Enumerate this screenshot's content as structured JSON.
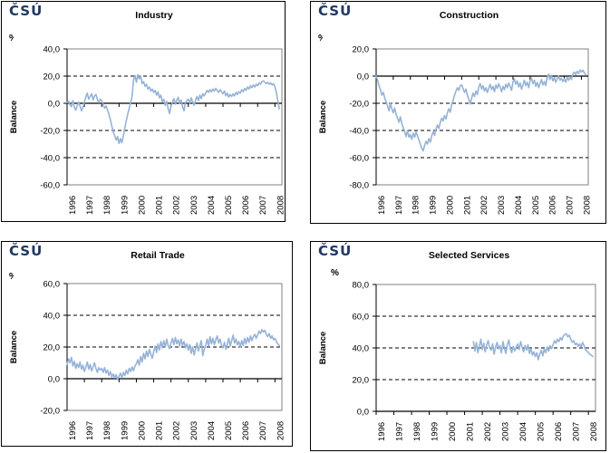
{
  "page": {
    "background": "#ffffff"
  },
  "logo": {
    "text": "ČSÚ",
    "color": "#1F3864"
  },
  "chart_data": [
    {
      "type": "line",
      "title": "Industry",
      "unit_label": "%",
      "unit_clipped": true,
      "ylabel": "Balance",
      "ylim": [
        -60,
        40
      ],
      "ytick_values": [
        40,
        20,
        0,
        -20,
        -40,
        -60
      ],
      "ytick_labels": [
        "40,0",
        "20,0",
        "0,0",
        "-20,0",
        "-40,0",
        "-60,0"
      ],
      "xlim": [
        1996,
        2008.4
      ],
      "xtick_values": [
        1996,
        1997,
        1998,
        1999,
        2000,
        2001,
        2002,
        2003,
        2004,
        2005,
        2006,
        2007,
        2008
      ],
      "xtick_labels": [
        "1996",
        "1997",
        "1998",
        "1999",
        "2000",
        "2001",
        "2002",
        "2003",
        "2004",
        "2005",
        "2006",
        "2007",
        "2008"
      ],
      "grid": "horizontal-dashed",
      "legend": "none",
      "line_color": "#95B3D7",
      "x_start": 1996.0,
      "x_step_years": 0.08333,
      "values": [
        0.5,
        1.5,
        -1.0,
        -2.5,
        2.0,
        -3.0,
        -5.0,
        -2.0,
        1.0,
        -2.0,
        -5.5,
        -3.0,
        1.0,
        4.5,
        7.5,
        3.0,
        5.0,
        7.0,
        2.5,
        5.5,
        6.5,
        3.0,
        0.5,
        3.0,
        2.0,
        -1.0,
        -3.5,
        -2.0,
        -5.0,
        -8.0,
        -12.0,
        -17.0,
        -21.0,
        -24.0,
        -27.0,
        -24.5,
        -29.5,
        -26.0,
        -29.0,
        -24.0,
        -18.0,
        -13.0,
        -8.0,
        -4.0,
        0.5,
        5.0,
        17.0,
        20.5,
        15.5,
        21.0,
        18.0,
        20.0,
        14.5,
        16.0,
        12.5,
        14.0,
        10.5,
        12.0,
        9.0,
        10.5,
        8.0,
        9.5,
        6.0,
        8.5,
        4.0,
        6.0,
        1.0,
        3.0,
        -1.5,
        1.5,
        -4.0,
        -7.5,
        -2.0,
        1.0,
        3.5,
        -0.5,
        2.0,
        4.5,
        0.0,
        2.5,
        -2.5,
        -5.5,
        0.5,
        2.0,
        3.0,
        0.0,
        4.0,
        1.0,
        -1.5,
        2.5,
        5.0,
        2.0,
        6.0,
        3.5,
        7.0,
        5.5,
        7.5,
        9.5,
        8.0,
        10.0,
        8.5,
        10.5,
        9.0,
        11.0,
        9.5,
        8.0,
        10.0,
        8.5,
        7.0,
        9.0,
        5.5,
        7.5,
        4.5,
        6.5,
        5.0,
        7.0,
        5.5,
        8.0,
        6.5,
        8.5,
        7.5,
        10.0,
        8.5,
        11.0,
        9.5,
        12.0,
        10.5,
        13.0,
        11.5,
        13.5,
        12.0,
        14.0,
        13.0,
        15.0,
        14.0,
        16.0,
        16.5,
        15.5,
        14.5,
        15.5,
        14.0,
        15.0,
        13.5,
        14.5,
        12.0,
        8.0,
        2.0,
        -4.0
      ]
    },
    {
      "type": "line",
      "title": "Construction",
      "unit_label": "%",
      "unit_clipped": true,
      "ylabel": "Balance",
      "ylim": [
        -80,
        20
      ],
      "ytick_values": [
        20,
        0,
        -20,
        -40,
        -60,
        -80
      ],
      "ytick_labels": [
        "20,0",
        "0,0",
        "-20,0",
        "-40,0",
        "-60,0",
        "-80,0"
      ],
      "xlim": [
        1996,
        2008.4
      ],
      "xtick_values": [
        1996,
        1997,
        1998,
        1999,
        2000,
        2001,
        2002,
        2003,
        2004,
        2005,
        2006,
        2007,
        2008
      ],
      "xtick_labels": [
        "1996",
        "1997",
        "1998",
        "1999",
        "2000",
        "2001",
        "2002",
        "2003",
        "2004",
        "2005",
        "2006",
        "2007",
        "2008"
      ],
      "grid": "horizontal-dashed",
      "legend": "none",
      "line_color": "#95B3D7",
      "x_start": 1996.0,
      "x_step_years": 0.08333,
      "values": [
        0.0,
        -3.0,
        -7.0,
        -10.0,
        -14.0,
        -12.0,
        -16.0,
        -19.0,
        -22.0,
        -25.5,
        -20.0,
        -24.0,
        -27.0,
        -23.5,
        -28.0,
        -31.0,
        -34.0,
        -30.0,
        -35.0,
        -38.0,
        -41.0,
        -44.5,
        -40.0,
        -45.0,
        -43.0,
        -46.5,
        -42.0,
        -45.0,
        -41.0,
        -44.0,
        -47.0,
        -50.0,
        -53.0,
        -55.0,
        -51.0,
        -48.0,
        -50.0,
        -46.0,
        -48.5,
        -44.0,
        -41.0,
        -43.5,
        -39.0,
        -36.0,
        -38.5,
        -34.0,
        -31.0,
        -33.0,
        -29.0,
        -31.5,
        -27.0,
        -24.0,
        -26.5,
        -21.0,
        -18.0,
        -14.0,
        -11.0,
        -8.5,
        -10.5,
        -7.0,
        -6.5,
        -9.0,
        -12.0,
        -9.5,
        -14.0,
        -17.0,
        -20.5,
        -16.0,
        -12.5,
        -15.0,
        -11.0,
        -13.5,
        -8.0,
        -5.5,
        -9.5,
        -7.0,
        -11.0,
        -8.5,
        -12.0,
        -9.0,
        -6.0,
        -10.0,
        -7.5,
        -11.5,
        -6.5,
        -9.0,
        -5.5,
        -8.0,
        -11.5,
        -7.5,
        -10.0,
        -6.0,
        -8.5,
        -5.0,
        -7.5,
        -10.5,
        -4.0,
        -2.0,
        -6.0,
        -3.5,
        -8.0,
        -5.0,
        -9.5,
        -6.5,
        -3.0,
        -7.0,
        -4.5,
        -8.5,
        -3.5,
        -1.5,
        -5.5,
        -3.0,
        -7.5,
        -4.5,
        -8.5,
        -5.5,
        -2.5,
        -6.5,
        -4.0,
        -7.0,
        -1.0,
        1.5,
        -2.5,
        0.5,
        -3.5,
        -1.0,
        -4.5,
        -2.0,
        0.0,
        -3.0,
        -1.5,
        -4.0,
        -2.0,
        -4.5,
        -1.0,
        -3.0,
        -0.5,
        -2.5,
        1.5,
        3.0,
        1.0,
        3.5,
        2.0,
        4.5,
        3.0,
        4.5,
        2.5,
        1.0
      ]
    },
    {
      "type": "line",
      "title": "Retail Trade",
      "unit_label": "%",
      "unit_clipped": true,
      "ylabel": "Balance",
      "ylim": [
        -20,
        60
      ],
      "ytick_values": [
        60,
        40,
        20,
        0,
        -20
      ],
      "ytick_labels": [
        "60,0",
        "40,0",
        "20,0",
        "0,0",
        "-20,0"
      ],
      "xlim": [
        1996,
        2008.4
      ],
      "xtick_values": [
        1996,
        1997,
        1998,
        1999,
        2000,
        2001,
        2002,
        2003,
        2004,
        2005,
        2006,
        2007,
        2008
      ],
      "xtick_labels": [
        "1996",
        "1997",
        "1998",
        "1999",
        "2000",
        "2001",
        "2002",
        "2003",
        "2004",
        "2005",
        "2006",
        "2007",
        "2008"
      ],
      "grid": "horizontal-dashed",
      "legend": "none",
      "line_color": "#95B3D7",
      "x_start": 1996.0,
      "x_step_years": 0.08333,
      "values": [
        9.0,
        12.5,
        10.0,
        13.5,
        8.0,
        11.0,
        6.5,
        9.5,
        7.0,
        10.5,
        6.0,
        8.5,
        4.5,
        7.5,
        10.5,
        6.0,
        9.0,
        5.0,
        7.5,
        10.0,
        6.5,
        4.0,
        7.0,
        5.5,
        6.5,
        4.0,
        7.0,
        3.5,
        5.5,
        2.0,
        4.5,
        1.0,
        3.0,
        0.5,
        2.5,
        -0.5,
        1.5,
        3.5,
        0.5,
        4.0,
        2.0,
        5.5,
        3.0,
        6.5,
        4.5,
        7.5,
        5.0,
        8.0,
        9.5,
        12.0,
        8.5,
        14.0,
        10.5,
        16.0,
        12.5,
        17.5,
        14.0,
        18.5,
        15.5,
        13.0,
        17.0,
        20.5,
        16.5,
        22.0,
        18.0,
        23.5,
        19.5,
        24.0,
        20.0,
        25.0,
        21.0,
        19.0,
        22.5,
        25.5,
        21.5,
        26.0,
        22.0,
        24.5,
        20.5,
        25.0,
        21.0,
        23.5,
        19.5,
        22.0,
        18.0,
        21.5,
        16.0,
        20.0,
        15.0,
        19.0,
        22.5,
        17.5,
        21.0,
        24.0,
        14.5,
        18.5,
        21.0,
        25.0,
        20.5,
        26.5,
        22.0,
        25.5,
        21.5,
        24.5,
        27.0,
        22.5,
        25.0,
        21.0,
        19.5,
        23.0,
        18.5,
        22.0,
        25.5,
        20.5,
        24.0,
        27.5,
        22.5,
        25.0,
        21.5,
        23.5,
        20.0,
        24.0,
        21.0,
        25.5,
        22.0,
        26.0,
        23.0,
        27.0,
        24.0,
        26.5,
        28.0,
        25.5,
        27.5,
        30.0,
        28.5,
        31.0,
        29.5,
        30.5,
        28.0,
        26.5,
        28.5,
        25.5,
        27.0,
        24.5,
        25.5,
        23.5,
        22.0,
        21.0
      ]
    },
    {
      "type": "line",
      "title": "Selected Services",
      "unit_label": "%",
      "unit_clipped": false,
      "ylabel": "Balance",
      "ylim": [
        0,
        80
      ],
      "ytick_values": [
        80,
        60,
        40,
        20,
        0
      ],
      "ytick_labels": [
        "80,0",
        "60,0",
        "40,0",
        "20,0",
        "0,0"
      ],
      "xlim": [
        1996,
        2008.4
      ],
      "xtick_values": [
        1996,
        1997,
        1998,
        1999,
        2000,
        2001,
        2002,
        2003,
        2004,
        2005,
        2006,
        2007,
        2008
      ],
      "xtick_labels": [
        "1996",
        "1997",
        "1998",
        "1999",
        "2000",
        "2001",
        "2002",
        "2003",
        "2004",
        "2005",
        "2006",
        "2007",
        "2008"
      ],
      "grid": "horizontal-dashed",
      "legend": "none",
      "line_color": "#95B3D7",
      "x_start": 2001.5,
      "x_step_years": 0.08333,
      "values": [
        44.0,
        38.0,
        43.5,
        37.0,
        41.0,
        45.5,
        39.0,
        43.0,
        37.5,
        42.0,
        44.5,
        40.0,
        38.5,
        42.5,
        36.0,
        40.5,
        43.5,
        39.5,
        41.5,
        37.0,
        44.0,
        40.0,
        36.5,
        42.0,
        45.0,
        39.5,
        37.0,
        41.0,
        38.0,
        40.5,
        42.5,
        39.0,
        44.0,
        40.5,
        37.5,
        41.5,
        38.5,
        42.0,
        36.5,
        39.5,
        35.5,
        37.5,
        34.5,
        37.0,
        32.5,
        36.0,
        38.5,
        35.0,
        39.5,
        37.0,
        40.5,
        38.0,
        41.5,
        39.5,
        42.0,
        44.5,
        43.0,
        45.5,
        44.0,
        46.5,
        45.0,
        47.5,
        48.5,
        49.0,
        47.0,
        48.0,
        45.5,
        43.5,
        44.5,
        42.0,
        43.0,
        41.0,
        42.5,
        40.5,
        43.5,
        41.5,
        39.0,
        38.0,
        37.0,
        36.0,
        35.5,
        34.5
      ]
    }
  ]
}
